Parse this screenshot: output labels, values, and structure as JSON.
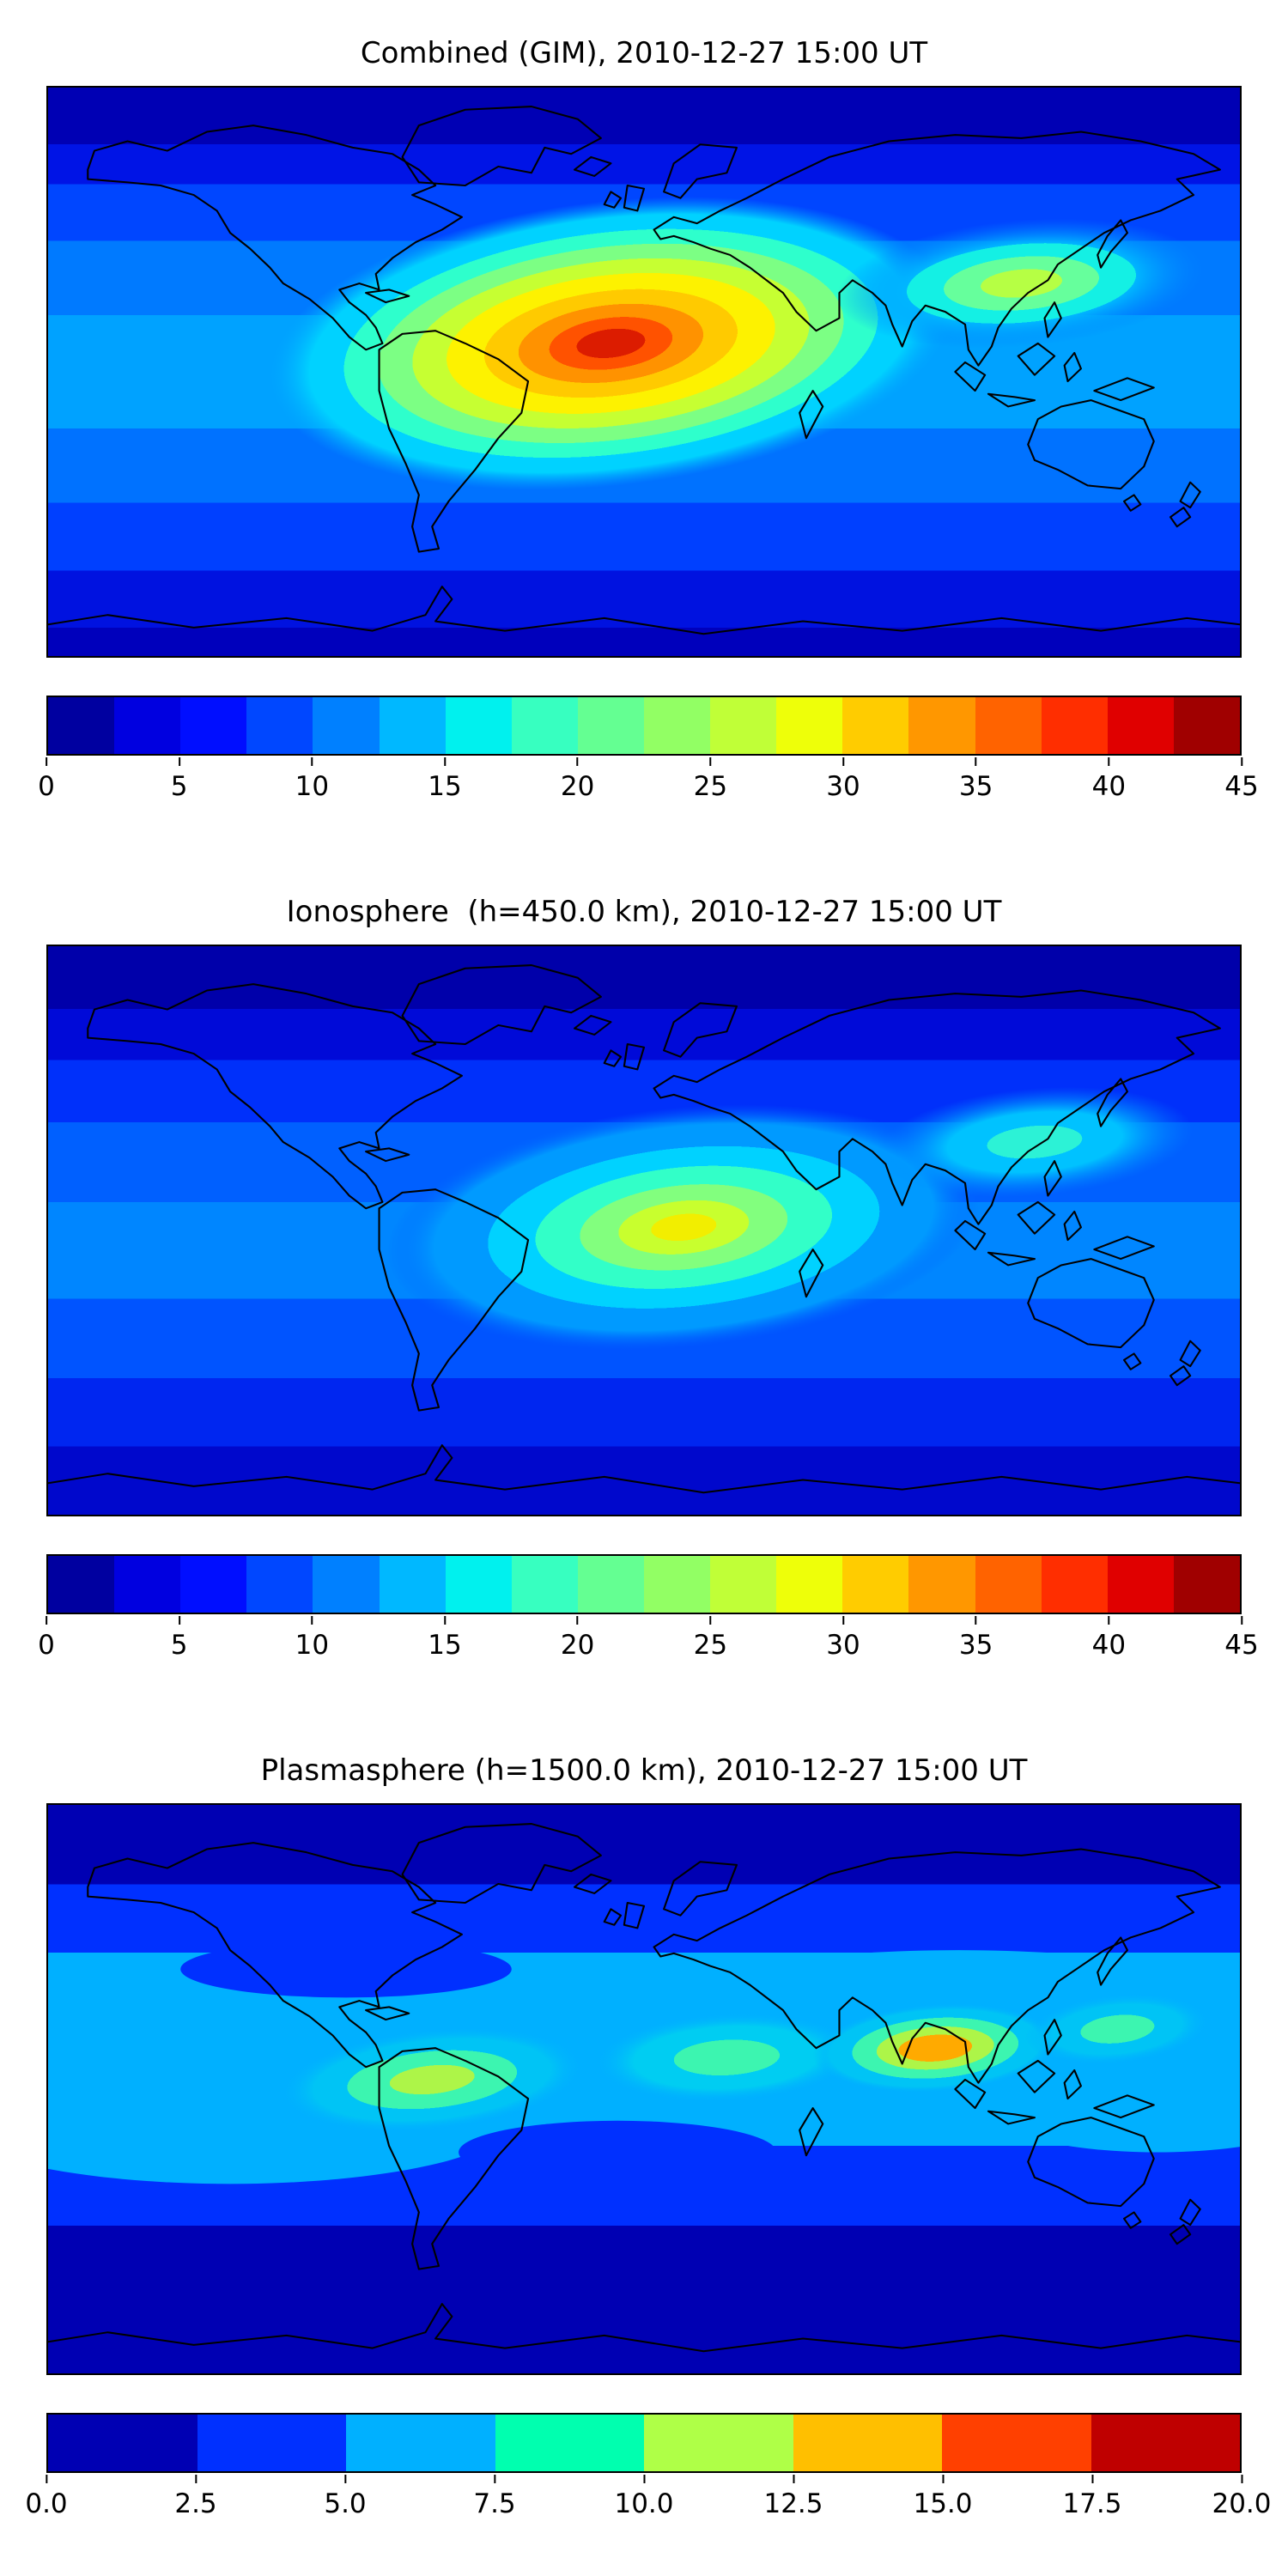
{
  "figure": {
    "background": "#ffffff",
    "panels": [
      {
        "id": "combined",
        "title": "Combined (GIM), 2010-12-27 15:00 UT",
        "colorbar": {
          "min": 0,
          "max": 45,
          "ticks": [
            "0",
            "5",
            "10",
            "15",
            "20",
            "25",
            "30",
            "35",
            "40",
            "45"
          ],
          "segment_colors": [
            "#0000a0",
            "#0000e0",
            "#000eff",
            "#0047ff",
            "#0080ff",
            "#00b8ff",
            "#00f1ee",
            "#37ffc0",
            "#64ff92",
            "#92ff64",
            "#c0ff37",
            "#eeff09",
            "#ffcc00",
            "#ff9700",
            "#ff6300",
            "#ff2e00",
            "#e00000",
            "#a00000"
          ]
        }
      },
      {
        "id": "ionosphere",
        "title": "Ionosphere  (h=450.0 km), 2010-12-27 15:00 UT",
        "colorbar": {
          "min": 0,
          "max": 45,
          "ticks": [
            "0",
            "5",
            "10",
            "15",
            "20",
            "25",
            "30",
            "35",
            "40",
            "45"
          ],
          "segment_colors": [
            "#0000a0",
            "#0000e0",
            "#000eff",
            "#0047ff",
            "#0080ff",
            "#00b8ff",
            "#00f1ee",
            "#37ffc0",
            "#64ff92",
            "#92ff64",
            "#c0ff37",
            "#eeff09",
            "#ffcc00",
            "#ff9700",
            "#ff6300",
            "#ff2e00",
            "#e00000",
            "#a00000"
          ]
        }
      },
      {
        "id": "plasmasphere",
        "title": "Plasmasphere (h=1500.0 km), 2010-12-27 15:00 UT",
        "colorbar": {
          "min": 0,
          "max": 20,
          "ticks": [
            "0.0",
            "2.5",
            "5.0",
            "7.5",
            "10.0",
            "12.5",
            "15.0",
            "17.5",
            "20.0"
          ],
          "segment_colors": [
            "#0000b3",
            "#0030ff",
            "#00b0ff",
            "#00ffaf",
            "#afff47",
            "#ffbf00",
            "#ff4000",
            "#bf0000"
          ]
        }
      }
    ]
  },
  "chart_data": [
    {
      "type": "heatmap",
      "title": "Combined (GIM), 2010-12-27 15:00 UT",
      "projection": "equirectangular world map with black coastlines",
      "lon_range": [
        -180,
        180
      ],
      "lat_range": [
        -90,
        90
      ],
      "colormap": "jet",
      "value_range": [
        0,
        45
      ],
      "contour_step": 2.5,
      "colorbar_ticks": [
        0,
        5,
        10,
        15,
        20,
        25,
        30,
        35,
        40,
        45
      ],
      "peak": {
        "value_est": 42,
        "lon_est": -15,
        "lat_est": 8,
        "location": "red maximum over the equatorial Atlantic between Brazil and West Africa"
      },
      "features": [
        "Large elongated afternoon enhancement (orange/yellow, 25-40) stretching from northern South America across the Atlantic and Africa",
        "Secondary yellow-green enhancement (~20-27) over India and Southeast Asia",
        "Dark navy lows (<5) at high northern latitudes and over the night-side Pacific",
        "Light-blue/cyan equatorial band (~12-18) elsewhere along low latitudes"
      ]
    },
    {
      "type": "heatmap",
      "title": "Ionosphere  (h=450.0 km), 2010-12-27 15:00 UT",
      "projection": "equirectangular world map with black coastlines",
      "lon_range": [
        -180,
        180
      ],
      "lat_range": [
        -90,
        90
      ],
      "colormap": "jet",
      "value_range": [
        0,
        45
      ],
      "contour_step": 2.5,
      "colorbar_ticks": [
        0,
        5,
        10,
        15,
        20,
        25,
        30,
        35,
        40,
        45
      ],
      "peak": {
        "value_est": 30,
        "lon_est": 5,
        "lat_est": -3,
        "location": "yellow maximum over the Gulf of Guinea / equatorial Africa"
      },
      "features": [
        "Weaker version of the combined map: yellow core (~28-30) surrounded by green and cyan rings over the South Atlantic and Africa",
        "Cyan patch (~15-18) over Southeast Asia",
        "Dark navy lows (<5) across high northern latitudes",
        "Mid-blue background (~5-12) over the rest of the globe"
      ]
    },
    {
      "type": "heatmap",
      "title": "Plasmasphere (h=1500.0 km), 2010-12-27 15:00 UT",
      "projection": "equirectangular world map with black coastlines",
      "lon_range": [
        -180,
        180
      ],
      "lat_range": [
        -90,
        90
      ],
      "colormap": "jet",
      "value_range": [
        0,
        20
      ],
      "contour_step": 2.5,
      "colorbar_ticks": [
        0,
        2.5,
        5,
        7.5,
        10,
        12.5,
        15,
        17.5,
        20
      ],
      "peak": {
        "value_est": 14,
        "lon_est": 88,
        "lat_est": 10,
        "location": "orange oval over India / Bay of Bengal"
      },
      "features": [
        "Wavy cyan band (~5-7.5) spanning all longitudes at low-to-mid latitudes following the magnetic equator",
        "Green/yellow-green patches (~7.5-12.5) over northern South America, central Africa and East Asia",
        "Single orange core (~12.5-15) over India and Southeast Asia",
        "Dark navy (<2.5) poleward of the band in both hemispheres"
      ]
    }
  ]
}
